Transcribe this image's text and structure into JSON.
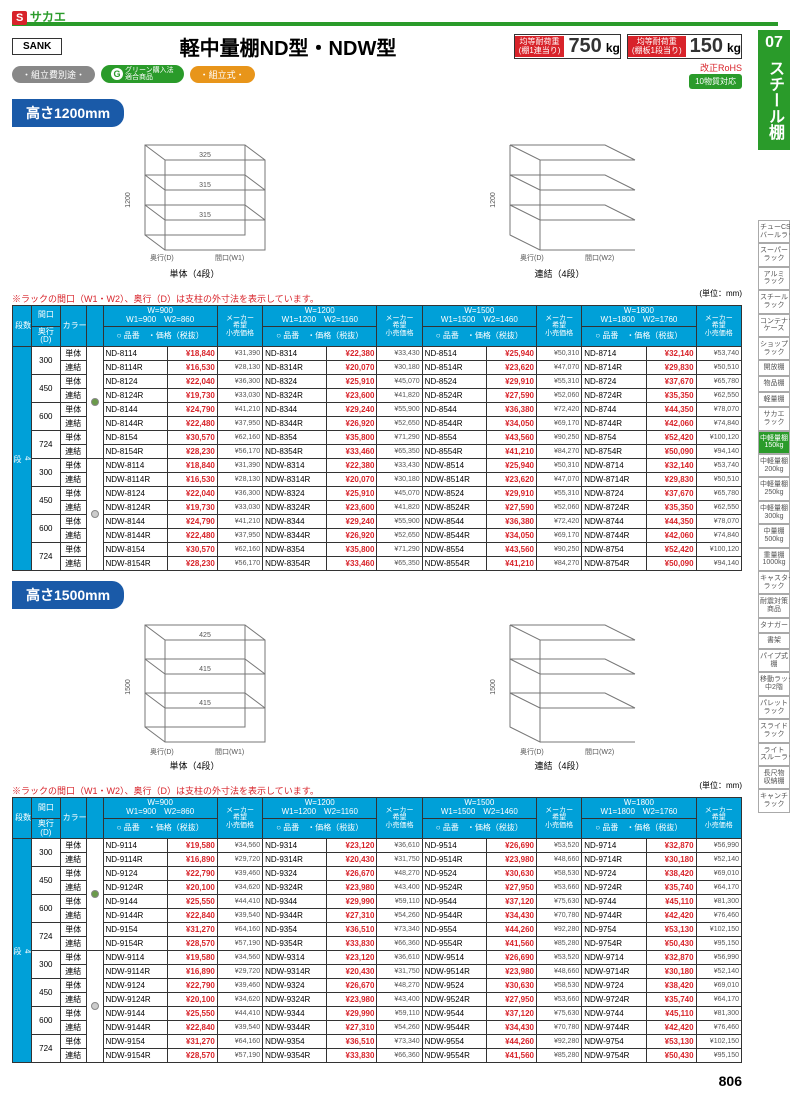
{
  "logo_s": "S",
  "logo_text": "サカエ",
  "sank": "SANK",
  "title": "軽中量棚ND型・NDW型",
  "cap1_label": "均等耐荷重\n(棚1連当り)",
  "cap1_val": "750",
  "cap2_label": "均等耐荷重\n(棚板1段当り)",
  "cap2_val": "150",
  "cap_unit": "kg",
  "pills": {
    "p1": "・組立費別途・",
    "p2": "グリーン購入法\n適合商品",
    "p3": "・組立式・"
  },
  "rohs_line1": "改正RoHS",
  "rohs_line2": "10物質対応",
  "section1": "高さ1200mm",
  "section2": "高さ1500mm",
  "diag_caption_single": "単体（4段）",
  "diag_caption_join": "連結（4段）",
  "diag_labels": {
    "height1200": "1200",
    "height1500": "1500",
    "gap325": "325",
    "gap315": "315",
    "gap425": "425",
    "gap415": "415",
    "depth": "奥行(D)",
    "w1": "間口(W1)",
    "w2": "間口(W2)"
  },
  "note": "※ラックの間口（W1・W2）、奥行（D）は支柱の外寸法を表示しています。",
  "unit": "(単位：mm)",
  "headers": {
    "tier": "段数",
    "width": "間口\n(W)",
    "depth_h": "奥行\n(D)",
    "type_h": "カラー",
    "code": "○ 品番",
    "price": "・価格（税抜）",
    "msrp": "メーカー\n希望\n小売価格",
    "w900": "W=900\nW1=900　W2=860",
    "w1200": "W=1200\nW1=1200　W2=1160",
    "w1500": "W=1500\nW1=1500　W2=1460",
    "w1800": "W=1800\nW1=1800　W2=1760"
  },
  "tier_label": "4\n段",
  "types": {
    "single": "単体",
    "join": "連結"
  },
  "side_num": "07",
  "side_title": "スチール棚",
  "side_items": [
    "チューCS\nバールラック",
    "スーパー\nラック",
    "アルミ\nラック",
    "スチール\nラック",
    "コンテナラック\nケース",
    "ショップ\nラック",
    "開放棚",
    "物品棚",
    "軽量棚",
    "サカエ\nラック",
    "中軽量棚\n150kg",
    "中軽量棚\n200kg",
    "中軽量棚\n250kg",
    "中軽量棚\n300kg",
    "中量棚\n500kg",
    "重量棚\n1000kg",
    "キャスター\nラック",
    "耐震対策\n商品",
    "タナガード",
    "書架",
    "パイプ式\n棚",
    "移動ラック・\n中2階",
    "パレット\nラック",
    "スライド\nラック",
    "ライト\nスルーラック",
    "長尺物\n収納棚",
    "キャンチ\nラック"
  ],
  "side_active_idx": 10,
  "page_num": "806",
  "table1": {
    "depths": [
      "300",
      "450",
      "600",
      "724",
      "300",
      "450",
      "600",
      "724"
    ],
    "rows": [
      [
        "ND-8114",
        "¥18,840",
        "¥31,390",
        "ND-8314",
        "¥22,380",
        "¥33,430",
        "ND-8514",
        "¥25,940",
        "¥50,310",
        "ND-8714",
        "¥32,140",
        "¥53,740"
      ],
      [
        "ND-8114R",
        "¥16,530",
        "¥28,130",
        "ND-8314R",
        "¥20,070",
        "¥30,180",
        "ND-8514R",
        "¥23,620",
        "¥47,070",
        "ND-8714R",
        "¥29,830",
        "¥50,510"
      ],
      [
        "ND-8124",
        "¥22,040",
        "¥36,300",
        "ND-8324",
        "¥25,910",
        "¥45,070",
        "ND-8524",
        "¥29,910",
        "¥55,310",
        "ND-8724",
        "¥37,670",
        "¥65,780"
      ],
      [
        "ND-8124R",
        "¥19,730",
        "¥33,030",
        "ND-8324R",
        "¥23,600",
        "¥41,820",
        "ND-8524R",
        "¥27,590",
        "¥52,060",
        "ND-8724R",
        "¥35,350",
        "¥62,550"
      ],
      [
        "ND-8144",
        "¥24,790",
        "¥41,210",
        "ND-8344",
        "¥29,240",
        "¥55,900",
        "ND-8544",
        "¥36,380",
        "¥72,420",
        "ND-8744",
        "¥44,350",
        "¥78,070"
      ],
      [
        "ND-8144R",
        "¥22,480",
        "¥37,950",
        "ND-8344R",
        "¥26,920",
        "¥52,650",
        "ND-8544R",
        "¥34,050",
        "¥69,170",
        "ND-8744R",
        "¥42,060",
        "¥74,840"
      ],
      [
        "ND-8154",
        "¥30,570",
        "¥62,160",
        "ND-8354",
        "¥35,800",
        "¥71,290",
        "ND-8554",
        "¥43,560",
        "¥90,250",
        "ND-8754",
        "¥52,420",
        "¥100,120"
      ],
      [
        "ND-8154R",
        "¥28,230",
        "¥56,170",
        "ND-8354R",
        "¥33,460",
        "¥65,350",
        "ND-8554R",
        "¥41,210",
        "¥84,270",
        "ND-8754R",
        "¥50,090",
        "¥94,140"
      ],
      [
        "NDW-8114",
        "¥18,840",
        "¥31,390",
        "NDW-8314",
        "¥22,380",
        "¥33,430",
        "NDW-8514",
        "¥25,940",
        "¥50,310",
        "NDW-8714",
        "¥32,140",
        "¥53,740"
      ],
      [
        "NDW-8114R",
        "¥16,530",
        "¥28,130",
        "NDW-8314R",
        "¥20,070",
        "¥30,180",
        "NDW-8514R",
        "¥23,620",
        "¥47,070",
        "NDW-8714R",
        "¥29,830",
        "¥50,510"
      ],
      [
        "NDW-8124",
        "¥22,040",
        "¥36,300",
        "NDW-8324",
        "¥25,910",
        "¥45,070",
        "NDW-8524",
        "¥29,910",
        "¥55,310",
        "NDW-8724",
        "¥37,670",
        "¥65,780"
      ],
      [
        "NDW-8124R",
        "¥19,730",
        "¥33,030",
        "NDW-8324R",
        "¥23,600",
        "¥41,820",
        "NDW-8524R",
        "¥27,590",
        "¥52,060",
        "NDW-8724R",
        "¥35,350",
        "¥62,550"
      ],
      [
        "NDW-8144",
        "¥24,790",
        "¥41,210",
        "NDW-8344",
        "¥29,240",
        "¥55,900",
        "NDW-8544",
        "¥36,380",
        "¥72,420",
        "NDW-8744",
        "¥44,350",
        "¥78,070"
      ],
      [
        "NDW-8144R",
        "¥22,480",
        "¥37,950",
        "NDW-8344R",
        "¥26,920",
        "¥52,650",
        "NDW-8544R",
        "¥34,050",
        "¥69,170",
        "NDW-8744R",
        "¥42,060",
        "¥74,840"
      ],
      [
        "NDW-8154",
        "¥30,570",
        "¥62,160",
        "NDW-8354",
        "¥35,800",
        "¥71,290",
        "NDW-8554",
        "¥43,560",
        "¥90,250",
        "NDW-8754",
        "¥52,420",
        "¥100,120"
      ],
      [
        "NDW-8154R",
        "¥28,230",
        "¥56,170",
        "NDW-8354R",
        "¥33,460",
        "¥65,350",
        "NDW-8554R",
        "¥41,210",
        "¥84,270",
        "NDW-8754R",
        "¥50,090",
        "¥94,140"
      ]
    ]
  },
  "table2": {
    "depths": [
      "300",
      "450",
      "600",
      "724",
      "300",
      "450",
      "600",
      "724"
    ],
    "rows": [
      [
        "ND-9114",
        "¥19,580",
        "¥34,560",
        "ND-9314",
        "¥23,120",
        "¥36,610",
        "ND-9514",
        "¥26,690",
        "¥53,520",
        "ND-9714",
        "¥32,870",
        "¥56,990"
      ],
      [
        "ND-9114R",
        "¥16,890",
        "¥29,720",
        "ND-9314R",
        "¥20,430",
        "¥31,750",
        "ND-9514R",
        "¥23,980",
        "¥48,660",
        "ND-9714R",
        "¥30,180",
        "¥52,140"
      ],
      [
        "ND-9124",
        "¥22,790",
        "¥39,460",
        "ND-9324",
        "¥26,670",
        "¥48,270",
        "ND-9524",
        "¥30,630",
        "¥58,530",
        "ND-9724",
        "¥38,420",
        "¥69,010"
      ],
      [
        "ND-9124R",
        "¥20,100",
        "¥34,620",
        "ND-9324R",
        "¥23,980",
        "¥43,400",
        "ND-9524R",
        "¥27,950",
        "¥53,660",
        "ND-9724R",
        "¥35,740",
        "¥64,170"
      ],
      [
        "ND-9144",
        "¥25,550",
        "¥44,410",
        "ND-9344",
        "¥29,990",
        "¥59,110",
        "ND-9544",
        "¥37,120",
        "¥75,630",
        "ND-9744",
        "¥45,110",
        "¥81,300"
      ],
      [
        "ND-9144R",
        "¥22,840",
        "¥39,540",
        "ND-9344R",
        "¥27,310",
        "¥54,260",
        "ND-9544R",
        "¥34,430",
        "¥70,780",
        "ND-9744R",
        "¥42,420",
        "¥76,460"
      ],
      [
        "ND-9154",
        "¥31,270",
        "¥64,160",
        "ND-9354",
        "¥36,510",
        "¥73,340",
        "ND-9554",
        "¥44,260",
        "¥92,280",
        "ND-9754",
        "¥53,130",
        "¥102,150"
      ],
      [
        "ND-9154R",
        "¥28,570",
        "¥57,190",
        "ND-9354R",
        "¥33,830",
        "¥66,360",
        "ND-9554R",
        "¥41,560",
        "¥85,280",
        "ND-9754R",
        "¥50,430",
        "¥95,150"
      ],
      [
        "NDW-9114",
        "¥19,580",
        "¥34,560",
        "NDW-9314",
        "¥23,120",
        "¥36,610",
        "NDW-9514",
        "¥26,690",
        "¥53,520",
        "NDW-9714",
        "¥32,870",
        "¥56,990"
      ],
      [
        "NDW-9114R",
        "¥16,890",
        "¥29,720",
        "NDW-9314R",
        "¥20,430",
        "¥31,750",
        "NDW-9514R",
        "¥23,980",
        "¥48,660",
        "NDW-9714R",
        "¥30,180",
        "¥52,140"
      ],
      [
        "NDW-9124",
        "¥22,790",
        "¥39,460",
        "NDW-9324",
        "¥26,670",
        "¥48,270",
        "NDW-9524",
        "¥30,630",
        "¥58,530",
        "NDW-9724",
        "¥38,420",
        "¥69,010"
      ],
      [
        "NDW-9124R",
        "¥20,100",
        "¥34,620",
        "NDW-9324R",
        "¥23,980",
        "¥43,400",
        "NDW-9524R",
        "¥27,950",
        "¥53,660",
        "NDW-9724R",
        "¥35,740",
        "¥64,170"
      ],
      [
        "NDW-9144",
        "¥25,550",
        "¥44,410",
        "NDW-9344",
        "¥29,990",
        "¥59,110",
        "NDW-9544",
        "¥37,120",
        "¥75,630",
        "NDW-9744",
        "¥45,110",
        "¥81,300"
      ],
      [
        "NDW-9144R",
        "¥22,840",
        "¥39,540",
        "NDW-9344R",
        "¥27,310",
        "¥54,260",
        "NDW-9544R",
        "¥34,430",
        "¥70,780",
        "NDW-9744R",
        "¥42,420",
        "¥76,460"
      ],
      [
        "NDW-9154",
        "¥31,270",
        "¥64,160",
        "NDW-9354",
        "¥36,510",
        "¥73,340",
        "NDW-9554",
        "¥44,260",
        "¥92,280",
        "NDW-9754",
        "¥53,130",
        "¥102,150"
      ],
      [
        "NDW-9154R",
        "¥28,570",
        "¥57,190",
        "NDW-9354R",
        "¥33,830",
        "¥66,360",
        "NDW-9554R",
        "¥41,560",
        "¥85,280",
        "NDW-9754R",
        "¥50,430",
        "¥95,150"
      ]
    ]
  }
}
